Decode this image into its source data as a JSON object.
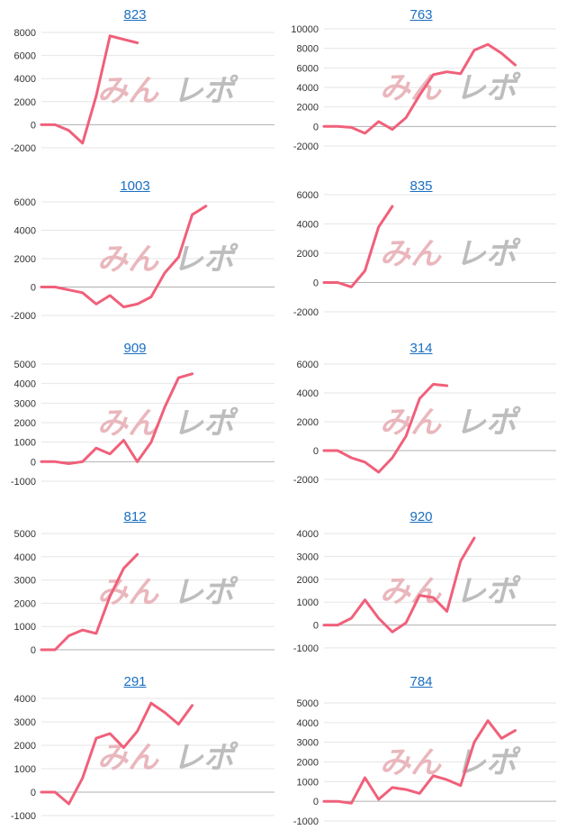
{
  "watermark": {
    "part1": "みん",
    "part2": "レポ"
  },
  "colors": {
    "line": "#f0607a",
    "axis": "#b0b0b0",
    "grid": "#e6e6e6",
    "title": "#1a6fc2"
  },
  "chart_data": [
    {
      "type": "line",
      "title": "823",
      "ylim": [
        -2000,
        8000
      ],
      "yticks": [
        -2000,
        0,
        2000,
        4000,
        6000,
        8000
      ],
      "xlim": [
        0,
        17
      ],
      "series": [
        {
          "values": [
            0,
            0,
            -500,
            -1600,
            2500,
            7700,
            7400,
            7100
          ]
        }
      ]
    },
    {
      "type": "line",
      "title": "763",
      "ylim": [
        -2000,
        10000
      ],
      "yticks": [
        -2000,
        0,
        2000,
        4000,
        6000,
        8000,
        10000
      ],
      "xlim": [
        0,
        17
      ],
      "series": [
        {
          "values": [
            0,
            0,
            -100,
            -700,
            500,
            -300,
            900,
            3200,
            5300,
            5600,
            5400,
            7800,
            8400,
            7500,
            6300
          ]
        }
      ]
    },
    {
      "type": "line",
      "title": "1003",
      "ylim": [
        -2000,
        6000
      ],
      "yticks": [
        -2000,
        0,
        2000,
        4000,
        6000
      ],
      "xlim": [
        0,
        17
      ],
      "series": [
        {
          "values": [
            0,
            0,
            -200,
            -400,
            -1200,
            -600,
            -1400,
            -1200,
            -700,
            1000,
            2100,
            5100,
            5700
          ]
        }
      ]
    },
    {
      "type": "line",
      "title": "835",
      "ylim": [
        -2000,
        6000
      ],
      "yticks": [
        -2000,
        0,
        2000,
        4000,
        6000
      ],
      "xlim": [
        0,
        17
      ],
      "series": [
        {
          "values": [
            0,
            0,
            -300,
            800,
            3800,
            5200
          ]
        }
      ]
    },
    {
      "type": "line",
      "title": "909",
      "ylim": [
        -1000,
        5000
      ],
      "yticks": [
        -1000,
        0,
        1000,
        2000,
        3000,
        4000,
        5000
      ],
      "xlim": [
        0,
        17
      ],
      "series": [
        {
          "values": [
            0,
            0,
            -100,
            0,
            700,
            400,
            1100,
            0,
            1000,
            2800,
            4300,
            4500
          ]
        }
      ]
    },
    {
      "type": "line",
      "title": "314",
      "ylim": [
        -2000,
        6000
      ],
      "yticks": [
        -2000,
        0,
        2000,
        4000,
        6000
      ],
      "xlim": [
        0,
        17
      ],
      "series": [
        {
          "values": [
            0,
            0,
            -500,
            -800,
            -1500,
            -500,
            1000,
            3600,
            4600,
            4500
          ]
        }
      ]
    },
    {
      "type": "line",
      "title": "812",
      "ylim": [
        0,
        5000
      ],
      "yticks": [
        0,
        1000,
        2000,
        3000,
        4000,
        5000
      ],
      "xlim": [
        0,
        17
      ],
      "series": [
        {
          "values": [
            0,
            0,
            600,
            850,
            700,
            2300,
            3500,
            4100
          ]
        }
      ]
    },
    {
      "type": "line",
      "title": "920",
      "ylim": [
        -1000,
        4000
      ],
      "yticks": [
        -1000,
        0,
        1000,
        2000,
        3000,
        4000
      ],
      "xlim": [
        0,
        17
      ],
      "series": [
        {
          "values": [
            0,
            0,
            300,
            1100,
            300,
            -300,
            100,
            1300,
            1200,
            600,
            2800,
            3800
          ]
        }
      ]
    },
    {
      "type": "line",
      "title": "291",
      "ylim": [
        -1000,
        4000
      ],
      "yticks": [
        -1000,
        0,
        1000,
        2000,
        3000,
        4000
      ],
      "xlim": [
        0,
        17
      ],
      "series": [
        {
          "values": [
            0,
            0,
            -500,
            600,
            2300,
            2500,
            1900,
            2600,
            3800,
            3400,
            2900,
            3700
          ]
        }
      ]
    },
    {
      "type": "line",
      "title": "784",
      "ylim": [
        -1000,
        5000
      ],
      "yticks": [
        -1000,
        0,
        1000,
        2000,
        3000,
        4000,
        5000
      ],
      "xlim": [
        0,
        17
      ],
      "series": [
        {
          "values": [
            0,
            0,
            -100,
            1200,
            100,
            700,
            600,
            400,
            1300,
            1100,
            800,
            3000,
            4100,
            3200,
            3600
          ]
        }
      ]
    }
  ]
}
